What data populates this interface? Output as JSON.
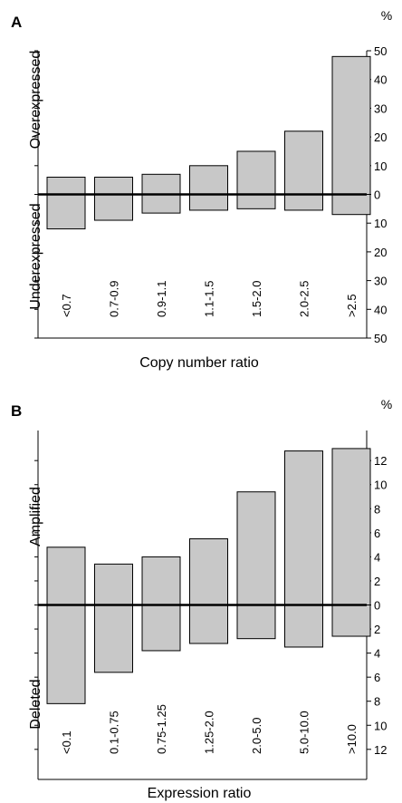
{
  "chart_data": [
    {
      "type": "bar",
      "panel_label": "A",
      "unit": "%",
      "xlabel": "Copy number ratio",
      "upper_label": "Overexpressed",
      "lower_label": "Underexpressed",
      "categories": [
        "<0.7",
        "0.7-0.9",
        "0.9-1.1",
        "1.1-1.5",
        "1.5-2.0",
        "2.0-2.5",
        ">2.5"
      ],
      "series": [
        {
          "values": [
            6,
            6,
            7,
            10,
            15,
            22,
            48
          ]
        },
        {
          "values": [
            -12,
            -9,
            -6.5,
            -5.5,
            -5,
            -5.5,
            -7
          ]
        }
      ],
      "ylim": [
        -50,
        50
      ],
      "ticks": [
        {
          "v": 50,
          "t": "50"
        },
        {
          "v": 40,
          "t": "40"
        },
        {
          "v": 30,
          "t": "30"
        },
        {
          "v": 20,
          "t": "20"
        },
        {
          "v": 10,
          "t": "10"
        },
        {
          "v": 0,
          "t": "0"
        },
        {
          "v": -10,
          "t": "10"
        },
        {
          "v": -20,
          "t": "20"
        },
        {
          "v": -30,
          "t": "30"
        },
        {
          "v": -40,
          "t": "40"
        },
        {
          "v": -50,
          "t": "50"
        }
      ]
    },
    {
      "type": "bar",
      "panel_label": "B",
      "unit": "%",
      "xlabel": "Expression ratio",
      "upper_label": "Amplified",
      "lower_label": "Deleted",
      "categories": [
        "<0.1",
        "0.1-0.75",
        "0.75-1.25",
        "1.25-2.0",
        "2.0-5.0",
        "5.0-10.0",
        ">10.0"
      ],
      "series": [
        {
          "values": [
            4.8,
            3.4,
            4.0,
            5.5,
            9.4,
            12.8,
            13.0
          ]
        },
        {
          "values": [
            -8.2,
            -5.6,
            -3.8,
            -3.2,
            -2.8,
            -3.5,
            -2.6
          ]
        }
      ],
      "ylim": [
        -14.5,
        14.5
      ],
      "ticks": [
        {
          "v": 12,
          "t": "12"
        },
        {
          "v": 10,
          "t": "10"
        },
        {
          "v": 8,
          "t": "8"
        },
        {
          "v": 6,
          "t": "6"
        },
        {
          "v": 4,
          "t": "4"
        },
        {
          "v": 2,
          "t": "2"
        },
        {
          "v": 0,
          "t": "0"
        },
        {
          "v": -2,
          "t": "2"
        },
        {
          "v": -4,
          "t": "4"
        },
        {
          "v": -6,
          "t": "6"
        },
        {
          "v": -8,
          "t": "8"
        },
        {
          "v": -10,
          "t": "10"
        },
        {
          "v": -12,
          "t": "12"
        }
      ]
    }
  ],
  "colors": {
    "bar_fill": "#c8c8c8",
    "ink": "#000000"
  }
}
